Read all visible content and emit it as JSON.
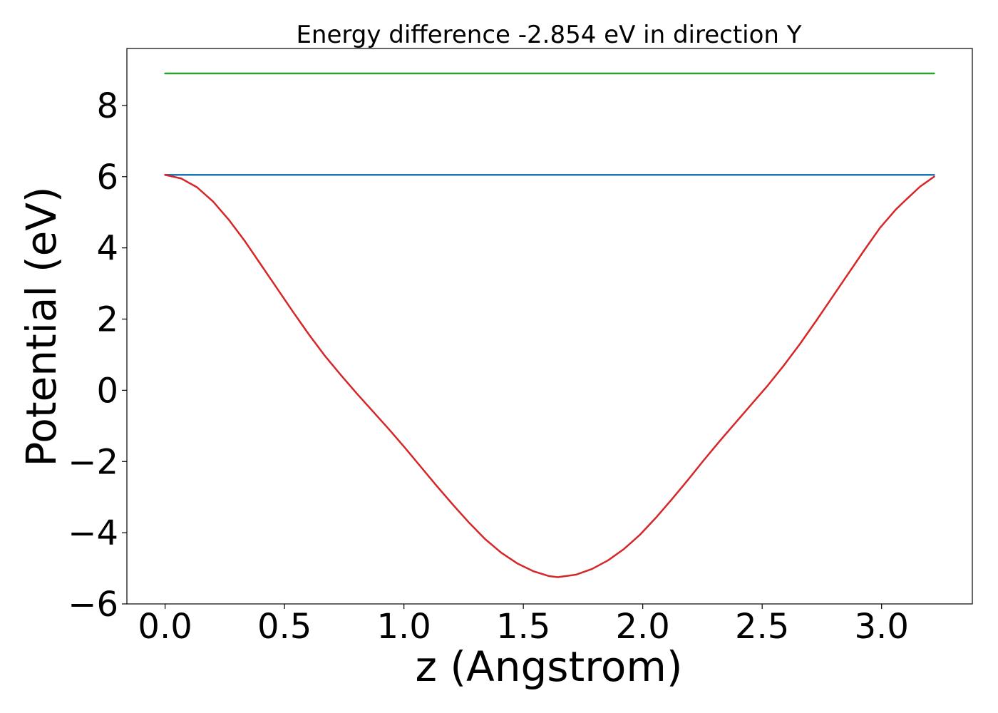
{
  "chart_data": {
    "type": "line",
    "title": "Energy difference -2.854 eV in direction Y",
    "xlabel": "z (Angstrom)",
    "ylabel": "Potential (eV)",
    "xlim": [
      -0.16,
      3.38
    ],
    "ylim": [
      -6.0,
      9.6
    ],
    "xticks": [
      0.0,
      0.5,
      1.0,
      1.5,
      2.0,
      2.5,
      3.0
    ],
    "xtick_labels": [
      "0.0",
      "0.5",
      "1.0",
      "1.5",
      "2.0",
      "2.5",
      "3.0"
    ],
    "yticks": [
      -6,
      -4,
      -2,
      0,
      2,
      4,
      6,
      8
    ],
    "ytick_labels": [
      "−6",
      "−4",
      "−2",
      "0",
      "2",
      "4",
      "6",
      "8"
    ],
    "grid": false,
    "series": [
      {
        "color": "#2ca02c",
        "x": [
          0.0,
          3.22
        ],
        "y": [
          8.9,
          8.9
        ]
      },
      {
        "color": "#1f77b4",
        "x": [
          0.0,
          3.22
        ],
        "y": [
          6.05,
          6.05
        ]
      },
      {
        "color": "#d62728",
        "x": [
          0.0,
          0.067,
          0.134,
          0.201,
          0.268,
          0.335,
          0.402,
          0.469,
          0.536,
          0.603,
          0.67,
          0.737,
          0.804,
          0.871,
          0.938,
          1.005,
          1.072,
          1.139,
          1.206,
          1.273,
          1.34,
          1.407,
          1.474,
          1.541,
          1.608,
          1.644,
          1.72,
          1.787,
          1.854,
          1.921,
          1.988,
          2.055,
          2.122,
          2.189,
          2.256,
          2.323,
          2.39,
          2.457,
          2.524,
          2.591,
          2.658,
          2.725,
          2.792,
          2.859,
          2.926,
          2.993,
          3.06,
          3.094,
          3.161,
          3.22
        ],
        "y": [
          6.05,
          5.95,
          5.7,
          5.3,
          4.78,
          4.18,
          3.52,
          2.86,
          2.2,
          1.56,
          0.96,
          0.42,
          -0.1,
          -0.6,
          -1.1,
          -1.62,
          -2.16,
          -2.7,
          -3.22,
          -3.72,
          -4.18,
          -4.56,
          -4.86,
          -5.08,
          -5.22,
          -5.25,
          -5.18,
          -5.02,
          -4.78,
          -4.46,
          -4.06,
          -3.58,
          -3.06,
          -2.52,
          -1.96,
          -1.42,
          -0.9,
          -0.38,
          0.14,
          0.7,
          1.3,
          1.94,
          2.6,
          3.26,
          3.92,
          4.56,
          5.08,
          5.3,
          5.72,
          6.0
        ]
      }
    ]
  }
}
